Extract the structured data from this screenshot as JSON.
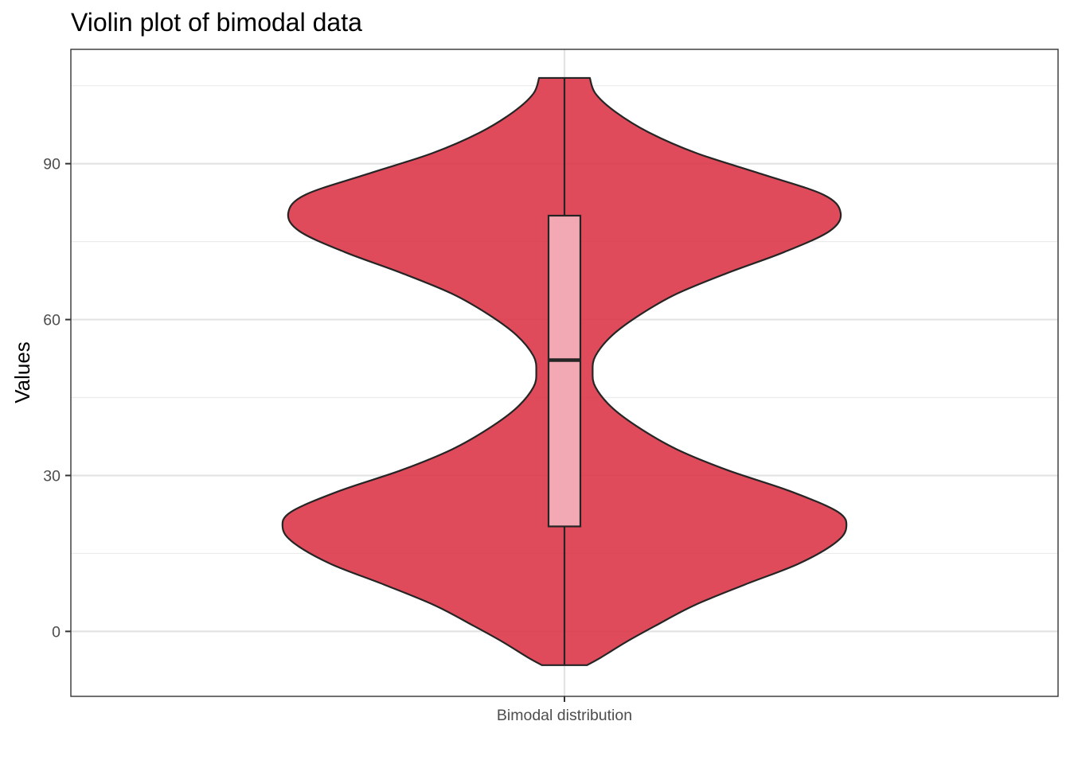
{
  "chart_data": {
    "type": "violin",
    "title": "Violin plot of bimodal data",
    "xlabel": "",
    "ylabel": "Values",
    "categories": [
      "Bimodal distribution"
    ],
    "ylim": [
      -12.5,
      112
    ],
    "yticks": [
      0,
      30,
      60,
      90
    ],
    "ytick_labels": [
      "0",
      "30",
      "60",
      "90"
    ],
    "grid": true,
    "legend": "none",
    "violin": {
      "min": -6.5,
      "max": 106.5,
      "density_profile": [
        {
          "y": -6.5,
          "w": 0.08
        },
        {
          "y": -5.0,
          "w": 0.13
        },
        {
          "y": -2.0,
          "w": 0.22
        },
        {
          "y": 1.0,
          "w": 0.32
        },
        {
          "y": 5.0,
          "w": 0.46
        },
        {
          "y": 9.0,
          "w": 0.64
        },
        {
          "y": 13.0,
          "w": 0.83
        },
        {
          "y": 17.0,
          "w": 0.96
        },
        {
          "y": 20.0,
          "w": 1.0
        },
        {
          "y": 23.0,
          "w": 0.97
        },
        {
          "y": 27.0,
          "w": 0.8
        },
        {
          "y": 31.0,
          "w": 0.58
        },
        {
          "y": 35.0,
          "w": 0.4
        },
        {
          "y": 39.0,
          "w": 0.27
        },
        {
          "y": 43.0,
          "w": 0.17
        },
        {
          "y": 47.0,
          "w": 0.11
        },
        {
          "y": 50.0,
          "w": 0.1
        },
        {
          "y": 53.0,
          "w": 0.11
        },
        {
          "y": 57.0,
          "w": 0.17
        },
        {
          "y": 61.0,
          "w": 0.27
        },
        {
          "y": 65.0,
          "w": 0.4
        },
        {
          "y": 69.0,
          "w": 0.58
        },
        {
          "y": 73.0,
          "w": 0.78
        },
        {
          "y": 77.0,
          "w": 0.94
        },
        {
          "y": 80.5,
          "w": 0.98
        },
        {
          "y": 84.0,
          "w": 0.92
        },
        {
          "y": 88.0,
          "w": 0.7
        },
        {
          "y": 92.0,
          "w": 0.47
        },
        {
          "y": 96.0,
          "w": 0.3
        },
        {
          "y": 100.0,
          "w": 0.18
        },
        {
          "y": 103.5,
          "w": 0.11
        },
        {
          "y": 106.5,
          "w": 0.09
        }
      ],
      "fill": "#dc3246",
      "fill_opacity": 0.88,
      "stroke": "#252525"
    },
    "boxplot": {
      "whisker_low": -6.5,
      "q1": 20.2,
      "median": 52.2,
      "q3": 80.0,
      "whisker_high": 106.5,
      "fill": "#f2a9b3",
      "stroke": "#252525"
    }
  }
}
